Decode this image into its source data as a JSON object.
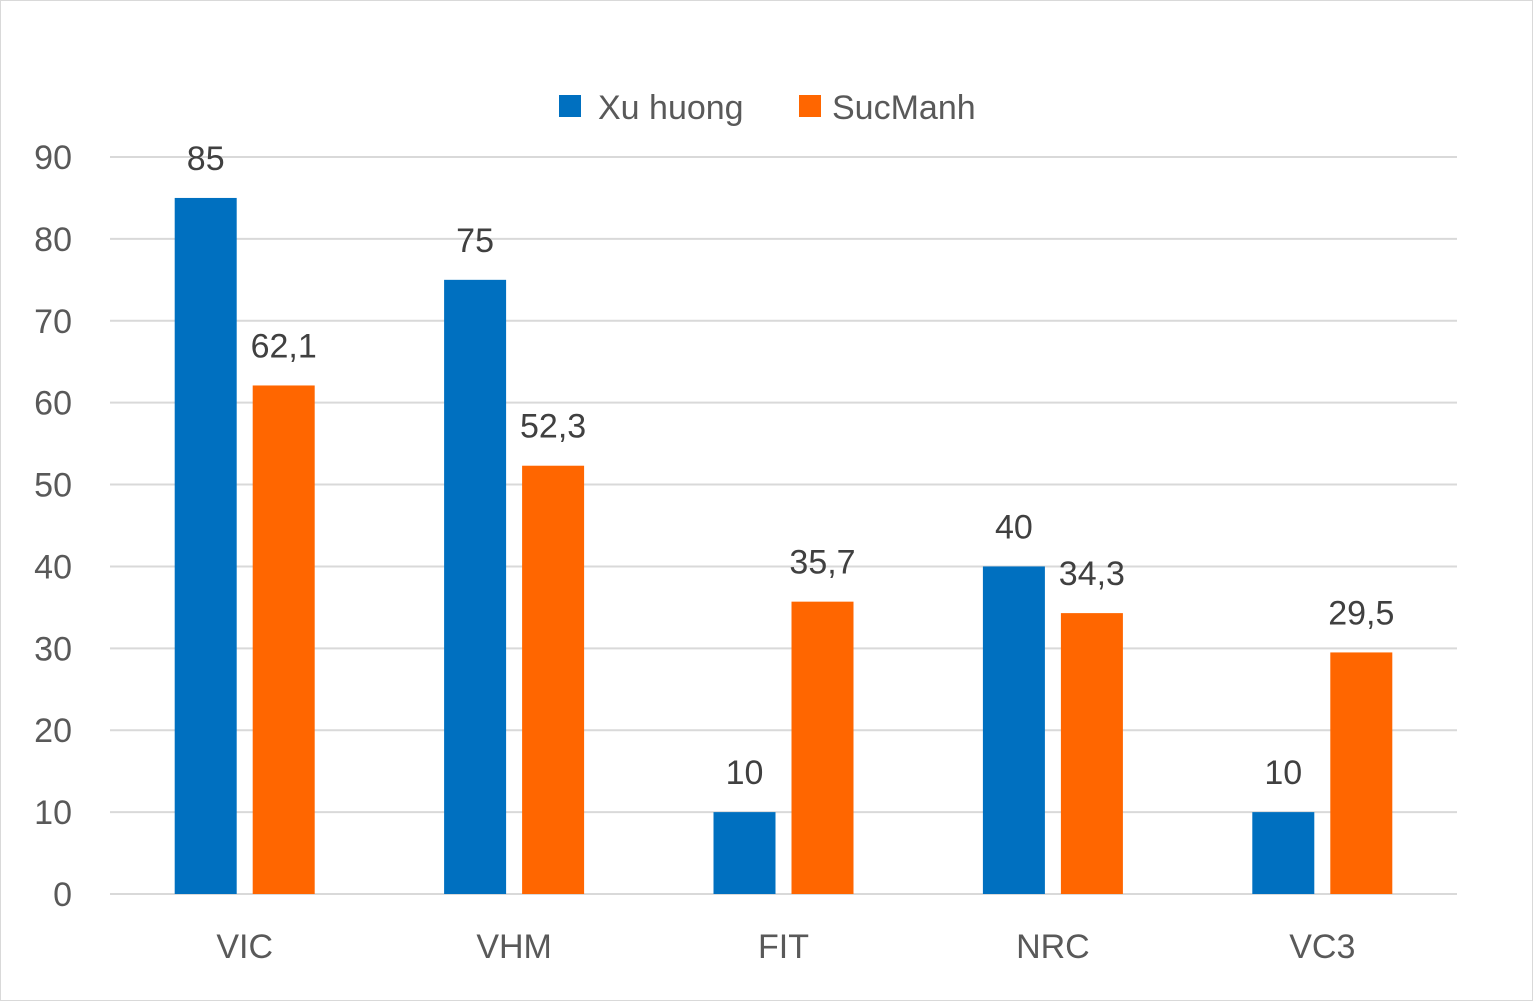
{
  "chart_data": {
    "type": "bar",
    "categories": [
      "VIC",
      "VHM",
      "FIT",
      "NRC",
      "VC3"
    ],
    "series": [
      {
        "name": "Xu huong",
        "color": "#0070C0",
        "values": [
          85,
          75,
          10,
          40,
          10
        ],
        "labels": [
          "85",
          "75",
          "10",
          "40",
          "10"
        ]
      },
      {
        "name": "SucManh",
        "color": "#FF6600",
        "values": [
          62.1,
          52.3,
          35.7,
          34.3,
          29.5
        ],
        "labels": [
          "62,1",
          "52,3",
          "35,7",
          "34,3",
          "29,5"
        ]
      }
    ],
    "y_ticks": [
      "0",
      "10",
      "20",
      "30",
      "40",
      "50",
      "60",
      "70",
      "80",
      "90"
    ],
    "ylim": [
      0,
      90
    ],
    "grid": true,
    "gridline_color": "#d9d9d9",
    "legend_position": "top"
  }
}
